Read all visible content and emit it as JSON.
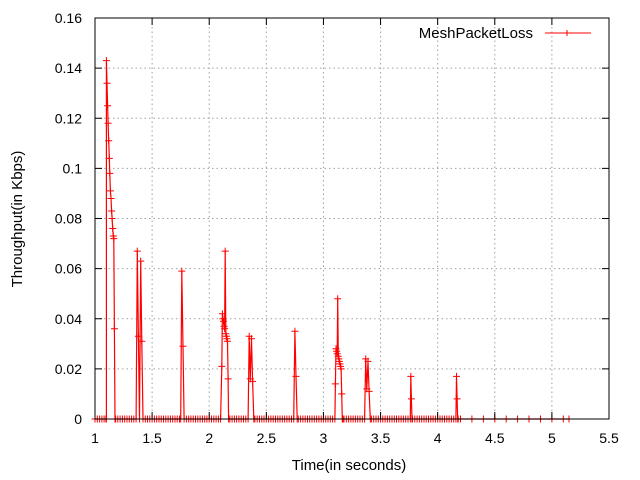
{
  "chart_data": {
    "type": "line",
    "xlabel": "Time(in seconds)",
    "ylabel": "Throughput(in Kbps)",
    "xlim": [
      1,
      5.5
    ],
    "ylim": [
      0,
      0.16
    ],
    "x_ticks": [
      1,
      1.5,
      2,
      2.5,
      3,
      3.5,
      4,
      4.5,
      5,
      5.5
    ],
    "x_tick_labels": [
      "1",
      "1.5",
      "2",
      "2.5",
      "3",
      "3.5",
      "4",
      "4.5",
      "5",
      "5.5"
    ],
    "y_ticks": [
      0,
      0.02,
      0.04,
      0.06,
      0.08,
      0.1,
      0.12,
      0.14,
      0.16
    ],
    "y_tick_labels": [
      "0",
      "0.02",
      "0.04",
      "0.06",
      "0.08",
      "0.1",
      "0.12",
      "0.14",
      "0.16"
    ],
    "grid": true,
    "legend_position": "top-right",
    "series": [
      {
        "name": "MeshPacketLoss",
        "color": "#ff0000",
        "marker": "plus",
        "x": [
          1.0,
          1.02,
          1.04,
          1.06,
          1.08,
          1.095,
          1.1,
          1.1,
          1.105,
          1.11,
          1.115,
          1.12,
          1.125,
          1.13,
          1.135,
          1.14,
          1.145,
          1.15,
          1.155,
          1.16,
          1.165,
          1.17,
          1.175,
          1.18,
          1.2,
          1.22,
          1.24,
          1.26,
          1.28,
          1.3,
          1.32,
          1.34,
          1.36,
          1.37,
          1.38,
          1.39,
          1.4,
          1.41,
          1.42,
          1.44,
          1.46,
          1.48,
          1.5,
          1.52,
          1.54,
          1.56,
          1.58,
          1.6,
          1.62,
          1.64,
          1.66,
          1.68,
          1.7,
          1.72,
          1.74,
          1.75,
          1.76,
          1.77,
          1.78,
          1.8,
          1.82,
          1.84,
          1.86,
          1.88,
          1.9,
          1.92,
          1.94,
          1.96,
          1.98,
          2.0,
          2.02,
          2.04,
          2.06,
          2.08,
          2.1,
          2.11,
          2.115,
          2.12,
          2.125,
          2.13,
          2.135,
          2.14,
          2.145,
          2.15,
          2.155,
          2.16,
          2.165,
          2.17,
          2.18,
          2.2,
          2.22,
          2.24,
          2.26,
          2.28,
          2.3,
          2.32,
          2.34,
          2.35,
          2.36,
          2.37,
          2.38,
          2.39,
          2.4,
          2.42,
          2.44,
          2.46,
          2.48,
          2.5,
          2.52,
          2.54,
          2.56,
          2.58,
          2.6,
          2.62,
          2.64,
          2.66,
          2.68,
          2.7,
          2.72,
          2.74,
          2.75,
          2.76,
          2.77,
          2.78,
          2.8,
          2.82,
          2.84,
          2.86,
          2.88,
          2.9,
          2.92,
          2.94,
          2.96,
          2.98,
          3.0,
          3.02,
          3.04,
          3.06,
          3.08,
          3.1,
          3.105,
          3.11,
          3.115,
          3.12,
          3.125,
          3.13,
          3.135,
          3.14,
          3.145,
          3.15,
          3.155,
          3.16,
          3.165,
          3.17,
          3.18,
          3.2,
          3.22,
          3.24,
          3.26,
          3.28,
          3.3,
          3.32,
          3.34,
          3.36,
          3.37,
          3.38,
          3.39,
          3.4,
          3.41,
          3.42,
          3.44,
          3.46,
          3.48,
          3.5,
          3.52,
          3.54,
          3.56,
          3.58,
          3.6,
          3.62,
          3.64,
          3.66,
          3.68,
          3.7,
          3.72,
          3.74,
          3.76,
          3.765,
          3.77,
          3.775,
          3.78,
          3.8,
          3.82,
          3.84,
          3.86,
          3.88,
          3.9,
          3.92,
          3.94,
          3.96,
          3.98,
          4.0,
          4.02,
          4.04,
          4.06,
          4.08,
          4.1,
          4.12,
          4.14,
          4.16,
          4.165,
          4.17,
          4.175,
          4.18,
          4.2,
          4.3,
          4.4,
          4.5,
          4.6,
          4.7,
          4.8,
          4.9,
          5.0,
          5.1,
          5.15
        ],
        "y": [
          0,
          0,
          0,
          0,
          0,
          0,
          0,
          0.143,
          0.134,
          0.125,
          0.118,
          0.111,
          0.104,
          0.098,
          0.091,
          0.088,
          0.083,
          0.08,
          0.076,
          0.073,
          0.072,
          0.036,
          0,
          0,
          0,
          0,
          0,
          0,
          0,
          0,
          0,
          0,
          0,
          0.067,
          0.033,
          0,
          0.063,
          0.031,
          0,
          0,
          0,
          0,
          0,
          0,
          0,
          0,
          0,
          0,
          0,
          0,
          0,
          0,
          0,
          0,
          0,
          0,
          0.059,
          0.029,
          0,
          0,
          0,
          0,
          0,
          0,
          0,
          0,
          0,
          0,
          0,
          0,
          0,
          0,
          0,
          0,
          0,
          0.021,
          0.042,
          0.04,
          0.039,
          0.037,
          0.036,
          0.067,
          0.034,
          0.033,
          0.032,
          0.031,
          0.016,
          0,
          0,
          0,
          0,
          0,
          0,
          0,
          0,
          0,
          0,
          0.033,
          0.016,
          0.032,
          0.015,
          0,
          0,
          0,
          0,
          0,
          0,
          0,
          0,
          0,
          0,
          0,
          0,
          0,
          0,
          0,
          0,
          0,
          0,
          0,
          0.035,
          0.017,
          0,
          0,
          0,
          0,
          0,
          0,
          0,
          0,
          0,
          0,
          0,
          0,
          0,
          0,
          0,
          0,
          0,
          0,
          0.014,
          0.028,
          0.027,
          0.026,
          0.048,
          0.025,
          0.024,
          0.023,
          0.022,
          0.021,
          0.02,
          0.01,
          0,
          0,
          0,
          0,
          0,
          0,
          0,
          0,
          0,
          0,
          0,
          0,
          0.024,
          0.012,
          0.023,
          0.011,
          0,
          0,
          0,
          0,
          0,
          0,
          0,
          0,
          0,
          0,
          0,
          0,
          0,
          0,
          0,
          0,
          0,
          0,
          0,
          0.017,
          0.008,
          0,
          0,
          0,
          0,
          0,
          0,
          0,
          0,
          0,
          0,
          0,
          0,
          0,
          0,
          0,
          0,
          0,
          0,
          0,
          0,
          0,
          0.017,
          0.008,
          0,
          0,
          0,
          0,
          0,
          0,
          0,
          0,
          0,
          0,
          0,
          0,
          0
        ]
      }
    ]
  }
}
